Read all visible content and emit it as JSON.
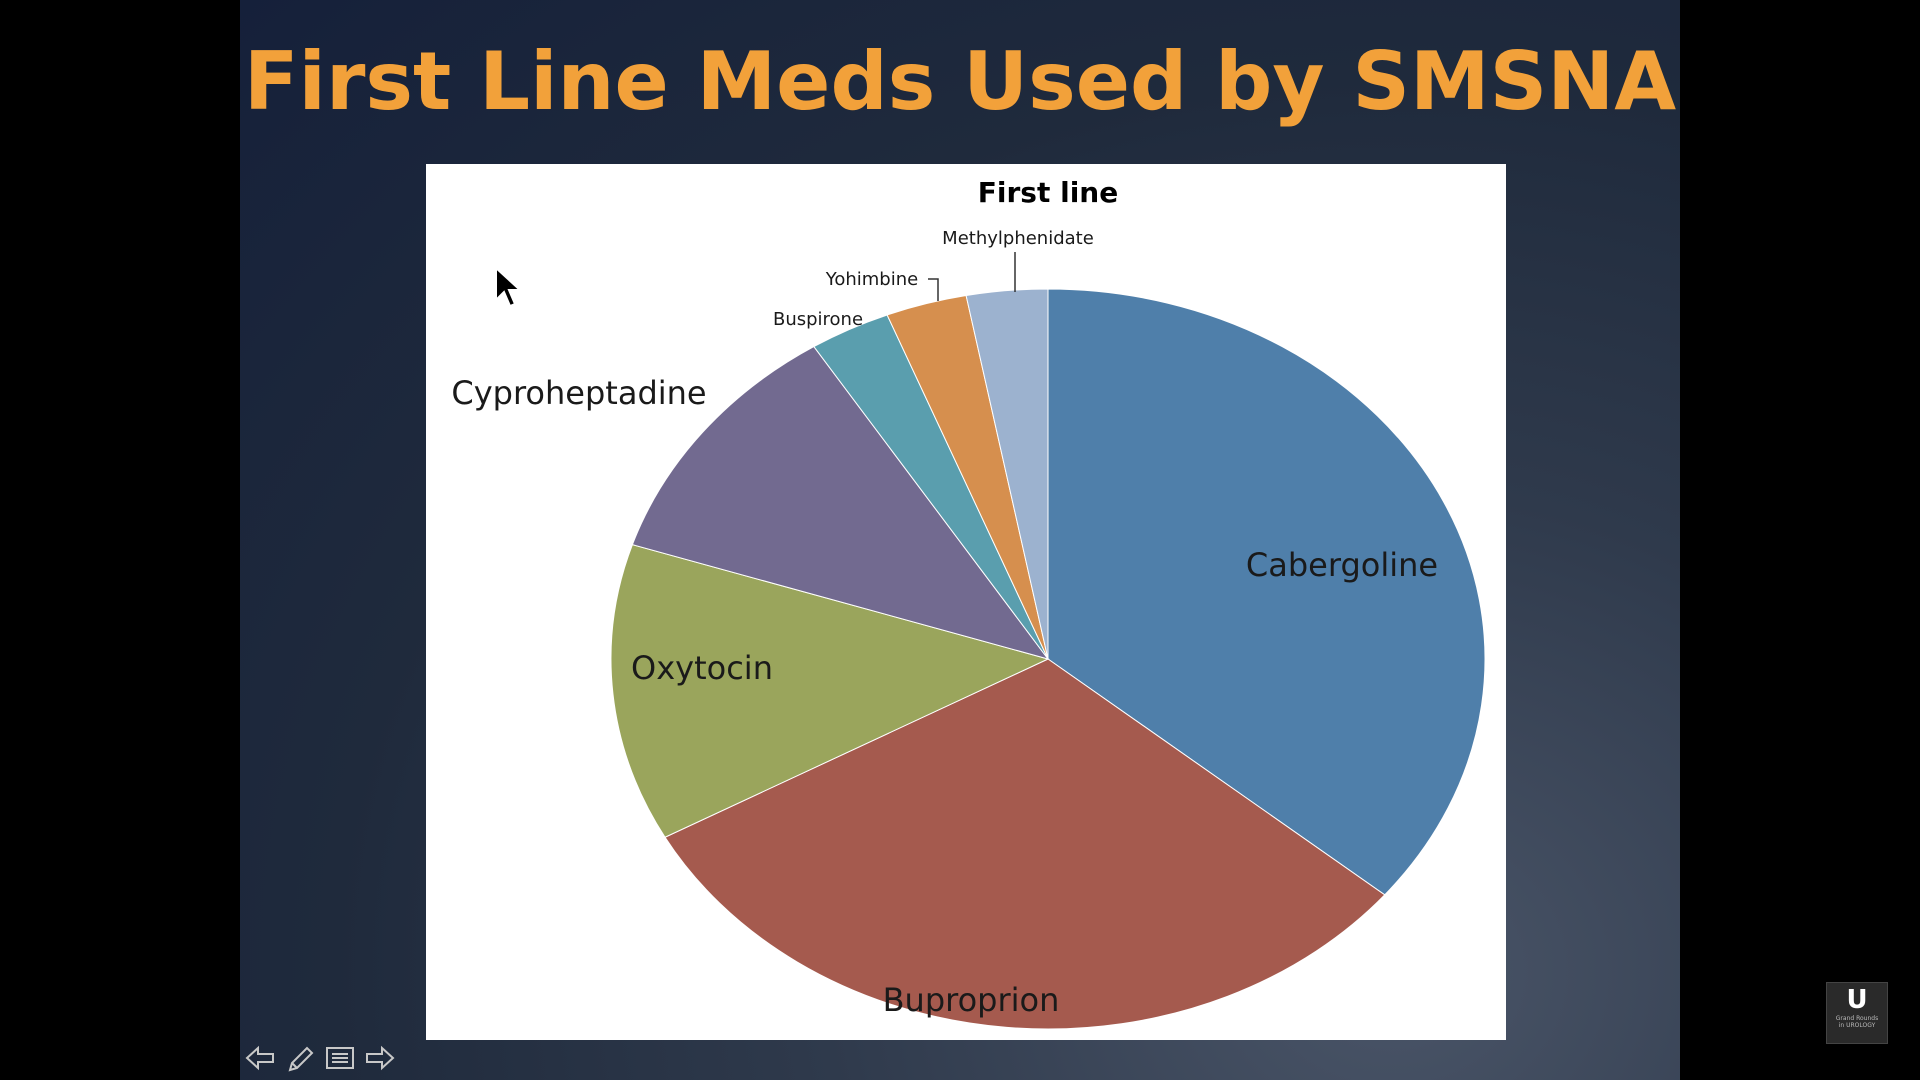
{
  "slide": {
    "title": "First Line Meds Used by SMSNA"
  },
  "chart_data": {
    "type": "pie",
    "title": "First line",
    "categories": [
      "Cabergoline",
      "Buproprion",
      "Oxytocin",
      "Cyproheptadine",
      "Buspirone",
      "Yohimbine",
      "Methylphenidate"
    ],
    "values": [
      36,
      31,
      13,
      11,
      3,
      3,
      3
    ],
    "colors": [
      "#4f7faa",
      "#a55a4e",
      "#9aa55c",
      "#726a90",
      "#5a9eae",
      "#d68f4e",
      "#9cb2cf"
    ],
    "grid": false,
    "legend": "none (data labels on/near slices)"
  },
  "branding": {
    "logo_letter": "U",
    "logo_text_top": "Grand Rounds",
    "logo_text_bottom": "in UROLOGY"
  },
  "icons": [
    "prev-arrow-icon",
    "pen-icon",
    "menu-icon",
    "next-arrow-icon",
    "mouse-cursor-icon"
  ]
}
